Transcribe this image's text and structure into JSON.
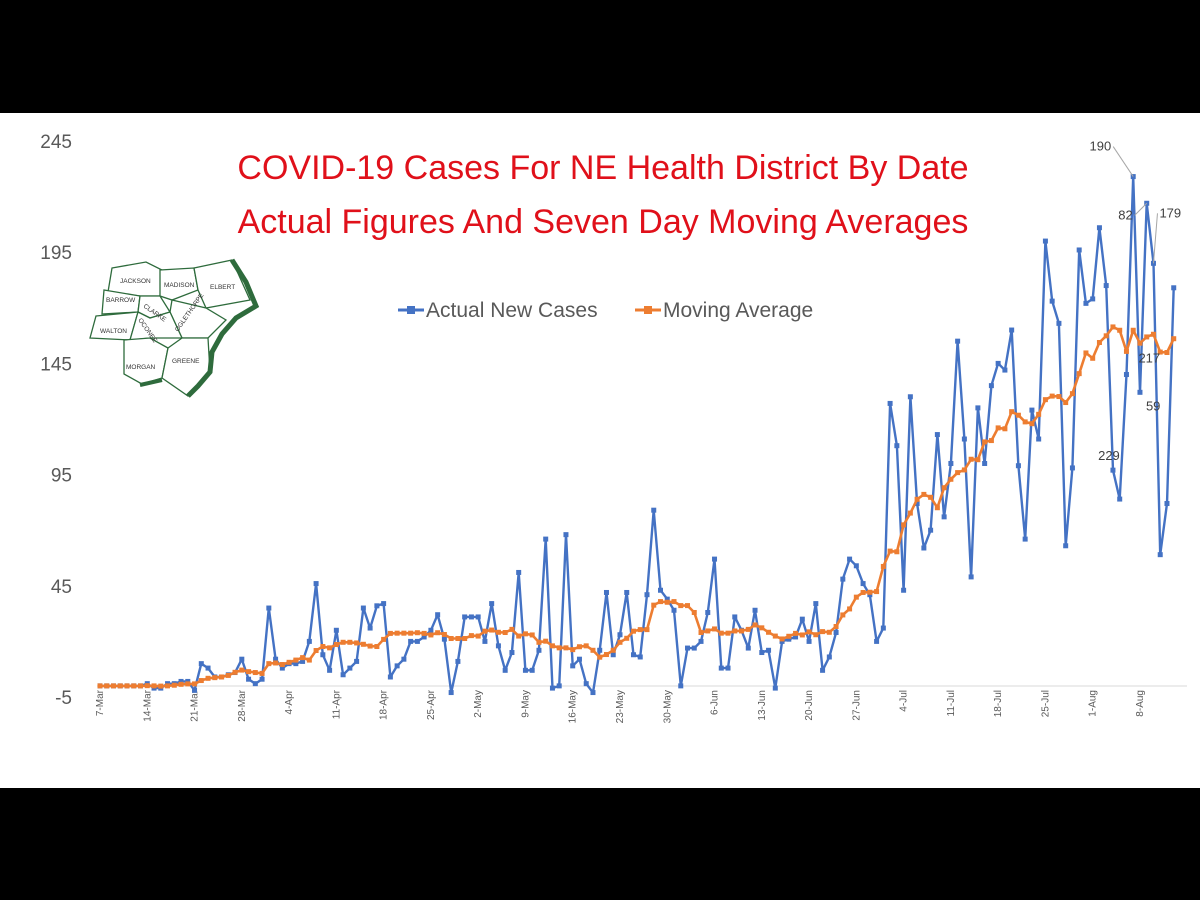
{
  "chart_data": {
    "type": "line",
    "title_lines": [
      "COVID-19 Cases For NE Health District By Date",
      "Actual Figures And Seven Day Moving Averages"
    ],
    "title_color": "#e0101a",
    "ylim": [
      -5,
      245
    ],
    "y_ticks": [
      -5,
      45,
      95,
      145,
      195,
      245
    ],
    "x_start": "7-Mar",
    "x_tick_labels": [
      "7-Mar",
      "14-Mar",
      "21-Mar",
      "28-Mar",
      "4-Apr",
      "11-Apr",
      "18-Apr",
      "25-Apr",
      "2-May",
      "9-May",
      "16-May",
      "23-May",
      "30-May",
      "6-Jun",
      "13-Jun",
      "20-Jun",
      "27-Jun",
      "4-Jul",
      "11-Jul",
      "18-Jul",
      "25-Jul",
      "1-Aug",
      "8-Aug"
    ],
    "legend_position": "top-center",
    "grid": false,
    "series": [
      {
        "name": "Actual New Cases",
        "color": "#4472c4",
        "values": [
          0,
          0,
          0,
          0,
          0,
          0,
          0,
          1,
          -1,
          -1,
          1,
          1,
          2,
          2,
          -2,
          10,
          8,
          4,
          4,
          5,
          6,
          12,
          3,
          1,
          3,
          35,
          12,
          8,
          10,
          10,
          11,
          20,
          46,
          14,
          7,
          25,
          5,
          8,
          11,
          35,
          26,
          36,
          37,
          4,
          9,
          12,
          20,
          20,
          22,
          25,
          32,
          21,
          -3,
          11,
          31,
          31,
          31,
          20,
          37,
          18,
          7,
          15,
          51,
          7,
          7,
          16,
          66,
          -1,
          0,
          68,
          9,
          12,
          1,
          -3,
          16,
          42,
          14,
          23,
          42,
          14,
          13,
          41,
          79,
          43,
          39,
          34,
          0,
          17,
          17,
          20,
          33,
          57,
          8,
          8,
          31,
          25,
          17,
          34,
          15,
          16,
          -1,
          20,
          21,
          22,
          30,
          20,
          37,
          7,
          13,
          24,
          48,
          57,
          54,
          46,
          41,
          20,
          26,
          127,
          108,
          43,
          130,
          82,
          62,
          70,
          113,
          76,
          100,
          155,
          111,
          49,
          125,
          100,
          135,
          145,
          142,
          160,
          99,
          66,
          124,
          111,
          200,
          173,
          163,
          63,
          98,
          196,
          172,
          174,
          206,
          180,
          97,
          84,
          140,
          229,
          132,
          217,
          190,
          59,
          82,
          179
        ]
      },
      {
        "name": "Moving Average",
        "color": "#ed7d31",
        "values": [
          0,
          0,
          0,
          0,
          0,
          0,
          0,
          0.1,
          0,
          -0.1,
          0,
          0.3,
          0.7,
          0.9,
          0.9,
          2.4,
          3.4,
          3.7,
          4,
          4.7,
          6.1,
          7.1,
          6.4,
          6,
          5.6,
          10,
          10.3,
          9.6,
          10.6,
          11.6,
          12.7,
          11.6,
          15.9,
          17.7,
          17.1,
          18.6,
          19.6,
          19.6,
          19.3,
          18.7,
          17.9,
          17.7,
          20.9,
          23.6,
          23.7,
          23.7,
          23.7,
          23.9,
          23.6,
          22.9,
          23.9,
          23.1,
          21.3,
          21.3,
          21.3,
          22.6,
          22.4,
          24.6,
          25.1,
          24.1,
          24,
          25.4,
          22.4,
          23.4,
          22.9,
          19.6,
          20.1,
          18,
          17.1,
          17.1,
          16.3,
          17.6,
          18,
          16,
          12.9,
          14.1,
          16,
          19.6,
          21.4,
          24.6,
          25.3,
          25.3,
          36.3,
          37.9,
          37.6,
          37.9,
          36.1,
          36.1,
          33,
          24,
          24.7,
          25.6,
          23.7,
          23.7,
          24.7,
          24.7,
          25.4,
          27.4,
          26.1,
          24.1,
          22.4,
          21.1,
          22.3,
          23.6,
          22.9,
          24.3,
          23,
          24.4,
          24.1,
          26.7,
          31.9,
          34.6,
          39.9,
          42,
          42.1,
          42.4,
          53.7,
          60.6,
          60.3,
          72.4,
          77.7,
          83.9,
          86.1,
          84.8,
          80.1,
          89.1,
          92.9,
          95.9,
          97.1,
          101.9,
          101.7,
          109.7,
          110.3,
          116,
          115.6,
          123.3,
          121.7,
          118.7,
          117.9,
          122.1,
          128.7,
          130.3,
          130.1,
          127.4,
          131.4,
          140.4,
          149.7,
          147.3,
          154.4,
          157.4,
          161.4,
          159.9,
          150.4,
          159.9,
          154.1,
          156.9,
          158.1,
          150.1,
          149.9,
          156.1
        ]
      }
    ],
    "annotations": [
      {
        "index": 150,
        "text": "229"
      },
      {
        "index": 152,
        "text": "217"
      },
      {
        "index": 153,
        "text": "190"
      },
      {
        "index": 156,
        "text": "179"
      },
      {
        "index": 155,
        "text": "82"
      },
      {
        "index": 154,
        "text": "59"
      }
    ],
    "map_counties": [
      "JACKSON",
      "MADISON",
      "ELBERT",
      "BARROW",
      "CLARKE",
      "OCONEE",
      "OGLETHORPE",
      "WALTON",
      "MORGAN",
      "GREENE"
    ],
    "map_color": "#2e6b3c"
  }
}
